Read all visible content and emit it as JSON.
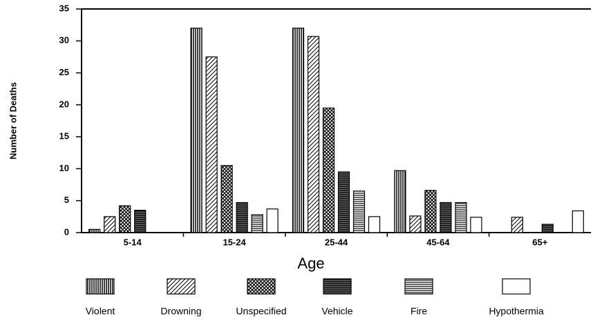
{
  "chart_data": {
    "type": "bar",
    "x_label": "Age",
    "y_label": "Number of Deaths",
    "categories": [
      "5-14",
      "15-24",
      "25-44",
      "45-64",
      "65+"
    ],
    "series": [
      {
        "name": "Violent",
        "pattern": "vertical",
        "values": [
          0.5,
          32,
          32,
          9.7,
          null
        ]
      },
      {
        "name": "Drowning",
        "pattern": "diagonal",
        "values": [
          2.5,
          27.5,
          30.7,
          2.6,
          2.4
        ]
      },
      {
        "name": "Unspecified",
        "pattern": "crosshatch",
        "values": [
          4.2,
          10.5,
          19.5,
          6.6,
          null
        ]
      },
      {
        "name": "Vehicle",
        "pattern": "dense",
        "values": [
          3.5,
          4.7,
          9.5,
          4.7,
          1.3
        ]
      },
      {
        "name": "Fire",
        "pattern": "horizontal",
        "values": [
          null,
          2.8,
          6.5,
          4.7,
          null
        ]
      },
      {
        "name": "Hypothermia",
        "pattern": "empty",
        "values": [
          null,
          3.7,
          2.5,
          2.4,
          3.4
        ]
      }
    ],
    "ylim": [
      0,
      35
    ],
    "yticks": [
      0,
      5,
      10,
      15,
      20,
      25,
      30,
      35
    ],
    "grid": false
  }
}
